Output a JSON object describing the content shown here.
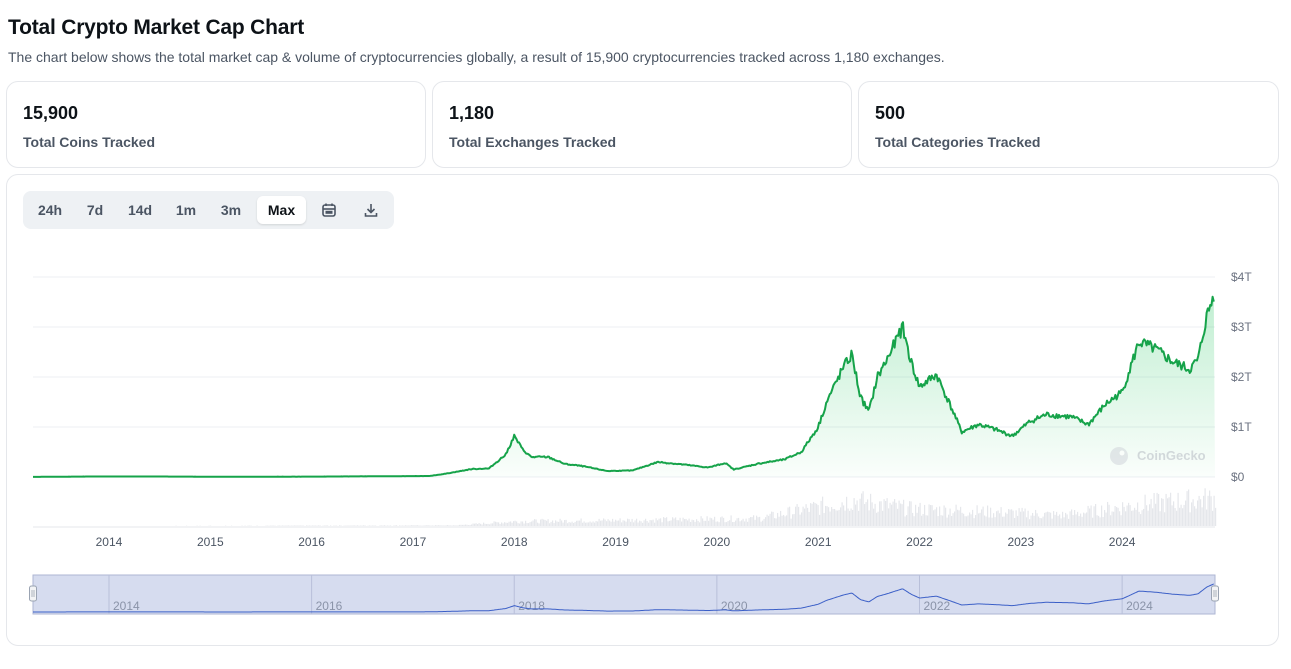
{
  "page": {
    "title": "Total Crypto Market Cap Chart",
    "description": "The chart below shows the total market cap & volume of cryptocurrencies globally, a result of 15,900 cryptocurrencies tracked across 1,180 exchanges."
  },
  "stats": [
    {
      "value": "15,900",
      "label": "Total Coins Tracked"
    },
    {
      "value": "1,180",
      "label": "Total Exchanges Tracked"
    },
    {
      "value": "500",
      "label": "Total Categories Tracked"
    }
  ],
  "range_buttons": [
    "24h",
    "7d",
    "14d",
    "1m",
    "3m",
    "Max"
  ],
  "active_range": "Max",
  "toolbar_icons": [
    "calendar-icon",
    "download-icon"
  ],
  "watermark": "CoinGecko",
  "colors": {
    "line": "#16a34a",
    "area_top": "#22c55e",
    "volume": "#e5e7eb",
    "navigator_fill": "#d6dcef",
    "navigator_line": "#3b5fc7"
  },
  "chart_data": {
    "type": "area",
    "title": "",
    "ylabel": "",
    "y_tick_labels": [
      "$0",
      "$1T",
      "$2T",
      "$3T",
      "$4T"
    ],
    "ylim": [
      0,
      4
    ],
    "y_unit": "trillion USD",
    "x_tick_labels": [
      "2014",
      "2015",
      "2016",
      "2017",
      "2018",
      "2019",
      "2020",
      "2021",
      "2022",
      "2023",
      "2024"
    ],
    "navigator_tick_labels": [
      "2014",
      "2016",
      "2018",
      "2020",
      "2022",
      "2024"
    ],
    "xlim": [
      "2013-04",
      "2024-12"
    ],
    "series": [
      {
        "name": "Market Cap",
        "points": [
          [
            "2013-04",
            0.002
          ],
          [
            "2013-11",
            0.01
          ],
          [
            "2014-06",
            0.01
          ],
          [
            "2015-01",
            0.006
          ],
          [
            "2015-12",
            0.007
          ],
          [
            "2016-06",
            0.012
          ],
          [
            "2016-12",
            0.017
          ],
          [
            "2017-03",
            0.02
          ],
          [
            "2017-05",
            0.07
          ],
          [
            "2017-08",
            0.16
          ],
          [
            "2017-10",
            0.17
          ],
          [
            "2017-12",
            0.45
          ],
          [
            "2018-01",
            0.82
          ],
          [
            "2018-02",
            0.55
          ],
          [
            "2018-03",
            0.4
          ],
          [
            "2018-05",
            0.4
          ],
          [
            "2018-07",
            0.26
          ],
          [
            "2018-09",
            0.22
          ],
          [
            "2018-12",
            0.12
          ],
          [
            "2019-03",
            0.13
          ],
          [
            "2019-06",
            0.3
          ],
          [
            "2019-09",
            0.25
          ],
          [
            "2019-12",
            0.19
          ],
          [
            "2020-02",
            0.28
          ],
          [
            "2020-03",
            0.15
          ],
          [
            "2020-06",
            0.27
          ],
          [
            "2020-09",
            0.35
          ],
          [
            "2020-11",
            0.5
          ],
          [
            "2021-01",
            1.0
          ],
          [
            "2021-02",
            1.5
          ],
          [
            "2021-04",
            2.2
          ],
          [
            "2021-05",
            2.45
          ],
          [
            "2021-06",
            1.6
          ],
          [
            "2021-07",
            1.3
          ],
          [
            "2021-08",
            2.0
          ],
          [
            "2021-09",
            2.3
          ],
          [
            "2021-11",
            3.0
          ],
          [
            "2021-12",
            2.3
          ],
          [
            "2022-01",
            1.8
          ],
          [
            "2022-03",
            2.05
          ],
          [
            "2022-05",
            1.3
          ],
          [
            "2022-06",
            0.9
          ],
          [
            "2022-08",
            1.05
          ],
          [
            "2022-10",
            0.95
          ],
          [
            "2022-12",
            0.82
          ],
          [
            "2023-02",
            1.1
          ],
          [
            "2023-04",
            1.25
          ],
          [
            "2023-07",
            1.2
          ],
          [
            "2023-09",
            1.05
          ],
          [
            "2023-11",
            1.45
          ],
          [
            "2024-01",
            1.7
          ],
          [
            "2024-03",
            2.7
          ],
          [
            "2024-05",
            2.55
          ],
          [
            "2024-07",
            2.3
          ],
          [
            "2024-09",
            2.15
          ],
          [
            "2024-10",
            2.35
          ],
          [
            "2024-11",
            3.2
          ],
          [
            "2024-12",
            3.7
          ]
        ]
      },
      {
        "name": "Volume",
        "relative_levels": [
          [
            "2013-04",
            0.0
          ],
          [
            "2017-06",
            0.02
          ],
          [
            "2018-01",
            0.15
          ],
          [
            "2019-06",
            0.2
          ],
          [
            "2020-06",
            0.25
          ],
          [
            "2021-05",
            0.85
          ],
          [
            "2021-12",
            0.55
          ],
          [
            "2022-06",
            0.5
          ],
          [
            "2023-06",
            0.35
          ],
          [
            "2024-03",
            0.7
          ],
          [
            "2024-12",
            0.9
          ]
        ]
      }
    ]
  }
}
